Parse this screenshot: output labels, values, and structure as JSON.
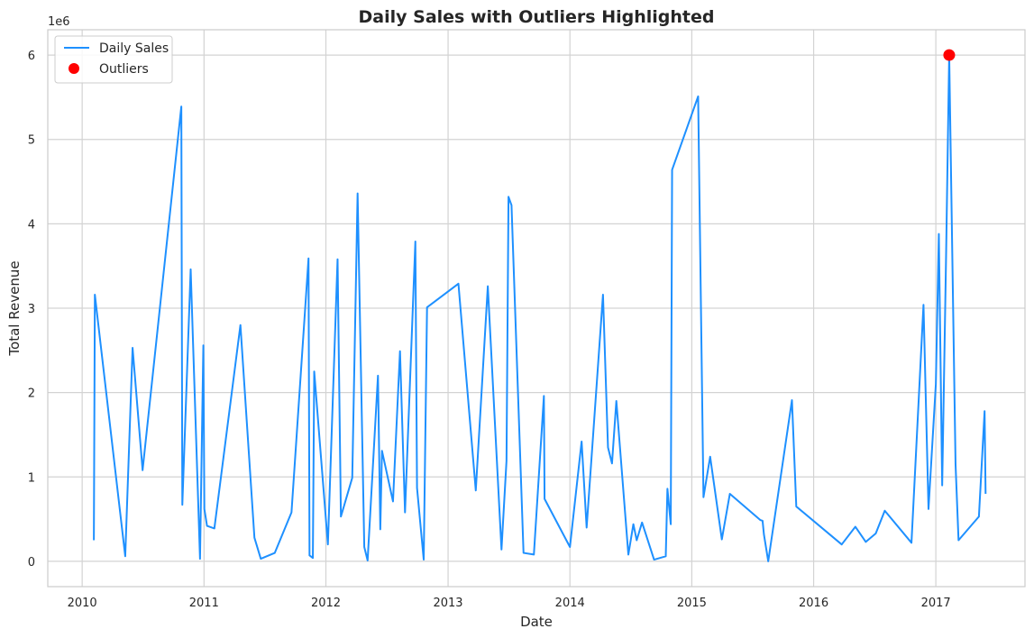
{
  "chart_data": {
    "type": "line",
    "title": "Daily Sales with Outliers Highlighted",
    "xlabel": "Date",
    "ylabel": "Total Revenue",
    "y_offset_label": "1e6",
    "xlim": [
      "2009-09-20",
      "2017-09-25"
    ],
    "ylim": [
      -300000,
      6300000
    ],
    "x_ticks": [
      {
        "date": "2010-01-01",
        "label": "2010"
      },
      {
        "date": "2011-01-01",
        "label": "2011"
      },
      {
        "date": "2012-01-01",
        "label": "2012"
      },
      {
        "date": "2013-01-01",
        "label": "2013"
      },
      {
        "date": "2014-01-01",
        "label": "2014"
      },
      {
        "date": "2015-01-01",
        "label": "2015"
      },
      {
        "date": "2016-01-01",
        "label": "2016"
      },
      {
        "date": "2017-01-01",
        "label": "2017"
      }
    ],
    "y_ticks": [
      {
        "value": 0,
        "label": "0"
      },
      {
        "value": 1000000,
        "label": "1"
      },
      {
        "value": 2000000,
        "label": "2"
      },
      {
        "value": 3000000,
        "label": "3"
      },
      {
        "value": 4000000,
        "label": "4"
      },
      {
        "value": 5000000,
        "label": "5"
      },
      {
        "value": 6000000,
        "label": "6"
      }
    ],
    "grid": true,
    "legend_position": "top-left",
    "series": [
      {
        "name": "Daily Sales",
        "kind": "line",
        "color": "#1e90ff",
        "points": [
          [
            "2010-02-05",
            250000
          ],
          [
            "2010-02-08",
            3160000
          ],
          [
            "2010-05-10",
            60000
          ],
          [
            "2010-06-01",
            2530000
          ],
          [
            "2010-07-01",
            1080000
          ],
          [
            "2010-10-25",
            5390000
          ],
          [
            "2010-10-28",
            670000
          ],
          [
            "2010-11-22",
            3460000
          ],
          [
            "2010-12-20",
            30000
          ],
          [
            "2010-12-30",
            2560000
          ],
          [
            "2011-01-02",
            620000
          ],
          [
            "2011-01-10",
            420000
          ],
          [
            "2011-02-01",
            390000
          ],
          [
            "2011-04-20",
            2800000
          ],
          [
            "2011-06-01",
            280000
          ],
          [
            "2011-06-20",
            30000
          ],
          [
            "2011-08-01",
            100000
          ],
          [
            "2011-09-20",
            580000
          ],
          [
            "2011-11-10",
            3590000
          ],
          [
            "2011-11-13",
            70000
          ],
          [
            "2011-11-23",
            40000
          ],
          [
            "2011-11-27",
            2250000
          ],
          [
            "2012-01-07",
            200000
          ],
          [
            "2012-02-05",
            3580000
          ],
          [
            "2012-02-15",
            530000
          ],
          [
            "2012-03-20",
            990000
          ],
          [
            "2012-04-05",
            4360000
          ],
          [
            "2012-04-25",
            170000
          ],
          [
            "2012-05-05",
            10000
          ],
          [
            "2012-06-05",
            2200000
          ],
          [
            "2012-06-12",
            380000
          ],
          [
            "2012-06-17",
            1310000
          ],
          [
            "2012-07-20",
            710000
          ],
          [
            "2012-08-10",
            2490000
          ],
          [
            "2012-08-25",
            580000
          ],
          [
            "2012-09-25",
            3790000
          ],
          [
            "2012-09-30",
            870000
          ],
          [
            "2012-10-20",
            20000
          ],
          [
            "2012-10-30",
            3010000
          ],
          [
            "2013-02-01",
            3290000
          ],
          [
            "2013-03-25",
            840000
          ],
          [
            "2013-04-30",
            3260000
          ],
          [
            "2013-06-10",
            140000
          ],
          [
            "2013-06-25",
            1190000
          ],
          [
            "2013-07-01",
            4320000
          ],
          [
            "2013-07-10",
            4220000
          ],
          [
            "2013-08-15",
            100000
          ],
          [
            "2013-09-15",
            80000
          ],
          [
            "2013-10-15",
            1960000
          ],
          [
            "2013-10-17",
            740000
          ],
          [
            "2014-01-01",
            170000
          ],
          [
            "2014-02-05",
            1420000
          ],
          [
            "2014-02-20",
            400000
          ],
          [
            "2014-04-10",
            3160000
          ],
          [
            "2014-04-25",
            1350000
          ],
          [
            "2014-05-07",
            1160000
          ],
          [
            "2014-05-20",
            1900000
          ],
          [
            "2014-06-25",
            80000
          ],
          [
            "2014-07-10",
            440000
          ],
          [
            "2014-07-20",
            250000
          ],
          [
            "2014-08-05",
            460000
          ],
          [
            "2014-09-10",
            20000
          ],
          [
            "2014-10-15",
            60000
          ],
          [
            "2014-10-20",
            860000
          ],
          [
            "2014-10-30",
            440000
          ],
          [
            "2014-11-03",
            4640000
          ],
          [
            "2015-01-20",
            5510000
          ],
          [
            "2015-02-05",
            760000
          ],
          [
            "2015-02-25",
            1240000
          ],
          [
            "2015-04-01",
            260000
          ],
          [
            "2015-04-25",
            800000
          ],
          [
            "2015-07-25",
            490000
          ],
          [
            "2015-08-01",
            480000
          ],
          [
            "2015-08-05",
            320000
          ],
          [
            "2015-08-18",
            0
          ],
          [
            "2015-10-28",
            1910000
          ],
          [
            "2015-11-10",
            650000
          ],
          [
            "2016-03-25",
            200000
          ],
          [
            "2016-05-05",
            410000
          ],
          [
            "2016-06-05",
            230000
          ],
          [
            "2016-07-05",
            330000
          ],
          [
            "2016-08-01",
            600000
          ],
          [
            "2016-10-20",
            220000
          ],
          [
            "2016-11-25",
            3040000
          ],
          [
            "2016-12-10",
            620000
          ],
          [
            "2017-01-01",
            2100000
          ],
          [
            "2017-01-10",
            3880000
          ],
          [
            "2017-01-20",
            900000
          ],
          [
            "2017-02-01",
            3700000
          ],
          [
            "2017-02-10",
            6000000
          ],
          [
            "2017-03-01",
            1150000
          ],
          [
            "2017-03-10",
            250000
          ],
          [
            "2017-05-10",
            530000
          ],
          [
            "2017-05-27",
            1780000
          ],
          [
            "2017-05-30",
            800000
          ]
        ]
      },
      {
        "name": "Outliers",
        "kind": "scatter",
        "color": "#ff0000",
        "points": [
          [
            "2017-02-10",
            6000000
          ]
        ]
      }
    ]
  }
}
